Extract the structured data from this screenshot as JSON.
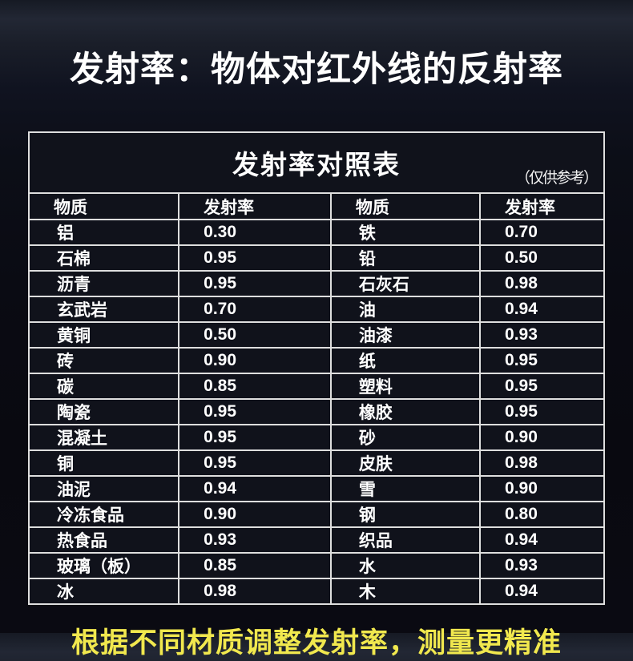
{
  "header": {
    "title": "发射率：物体对红外线的反射率"
  },
  "table": {
    "title": "发射率对照表",
    "note": "（仅供参考）",
    "headers": [
      "物质",
      "发射率",
      "物质",
      "发射率"
    ],
    "rows": [
      [
        "铝",
        "0.30",
        "铁",
        "0.70"
      ],
      [
        "石棉",
        "0.95",
        "铅",
        "0.50"
      ],
      [
        "沥青",
        "0.95",
        "石灰石",
        "0.98"
      ],
      [
        "玄武岩",
        "0.70",
        "油",
        "0.94"
      ],
      [
        "黄铜",
        "0.50",
        "油漆",
        "0.93"
      ],
      [
        "砖",
        "0.90",
        "纸",
        "0.95"
      ],
      [
        "碳",
        "0.85",
        "塑料",
        "0.95"
      ],
      [
        "陶瓷",
        "0.95",
        "橡胶",
        "0.95"
      ],
      [
        "混凝土",
        "0.95",
        "砂",
        "0.90"
      ],
      [
        "铜",
        "0.95",
        "皮肤",
        "0.98"
      ],
      [
        "油泥",
        "0.94",
        "雪",
        "0.90"
      ],
      [
        "冷冻食品",
        "0.90",
        "钢",
        "0.80"
      ],
      [
        "热食品",
        "0.93",
        "织品",
        "0.94"
      ],
      [
        "玻璃（板）",
        "0.85",
        "水",
        "0.93"
      ],
      [
        "冰",
        "0.98",
        "木",
        "0.94"
      ]
    ]
  },
  "footer": {
    "text": "根据不同材质调整发射率，测量更精准"
  },
  "colors": {
    "page_background": "#0a0b13",
    "cell_background": "#10121b",
    "table_border": "#dedede",
    "primary_text": "#ffffff",
    "footer_text": "#f1e84e"
  },
  "chart_data": {
    "type": "table",
    "title": "发射率对照表",
    "subtitle": "（仅供参考）",
    "columns": [
      "物质",
      "发射率",
      "物质",
      "发射率"
    ],
    "materials": [
      {
        "name": "铝",
        "emissivity": 0.3
      },
      {
        "name": "石棉",
        "emissivity": 0.95
      },
      {
        "name": "沥青",
        "emissivity": 0.95
      },
      {
        "name": "玄武岩",
        "emissivity": 0.7
      },
      {
        "name": "黄铜",
        "emissivity": 0.5
      },
      {
        "name": "砖",
        "emissivity": 0.9
      },
      {
        "name": "碳",
        "emissivity": 0.85
      },
      {
        "name": "陶瓷",
        "emissivity": 0.95
      },
      {
        "name": "混凝土",
        "emissivity": 0.95
      },
      {
        "name": "铜",
        "emissivity": 0.95
      },
      {
        "name": "油泥",
        "emissivity": 0.94
      },
      {
        "name": "冷冻食品",
        "emissivity": 0.9
      },
      {
        "name": "热食品",
        "emissivity": 0.93
      },
      {
        "name": "玻璃（板）",
        "emissivity": 0.85
      },
      {
        "name": "冰",
        "emissivity": 0.98
      },
      {
        "name": "铁",
        "emissivity": 0.7
      },
      {
        "name": "铅",
        "emissivity": 0.5
      },
      {
        "name": "石灰石",
        "emissivity": 0.98
      },
      {
        "name": "油",
        "emissivity": 0.94
      },
      {
        "name": "油漆",
        "emissivity": 0.93
      },
      {
        "name": "纸",
        "emissivity": 0.95
      },
      {
        "name": "塑料",
        "emissivity": 0.95
      },
      {
        "name": "橡胶",
        "emissivity": 0.95
      },
      {
        "name": "砂",
        "emissivity": 0.9
      },
      {
        "name": "皮肤",
        "emissivity": 0.98
      },
      {
        "name": "雪",
        "emissivity": 0.9
      },
      {
        "name": "钢",
        "emissivity": 0.8
      },
      {
        "name": "织品",
        "emissivity": 0.94
      },
      {
        "name": "水",
        "emissivity": 0.93
      },
      {
        "name": "木",
        "emissivity": 0.94
      }
    ]
  }
}
